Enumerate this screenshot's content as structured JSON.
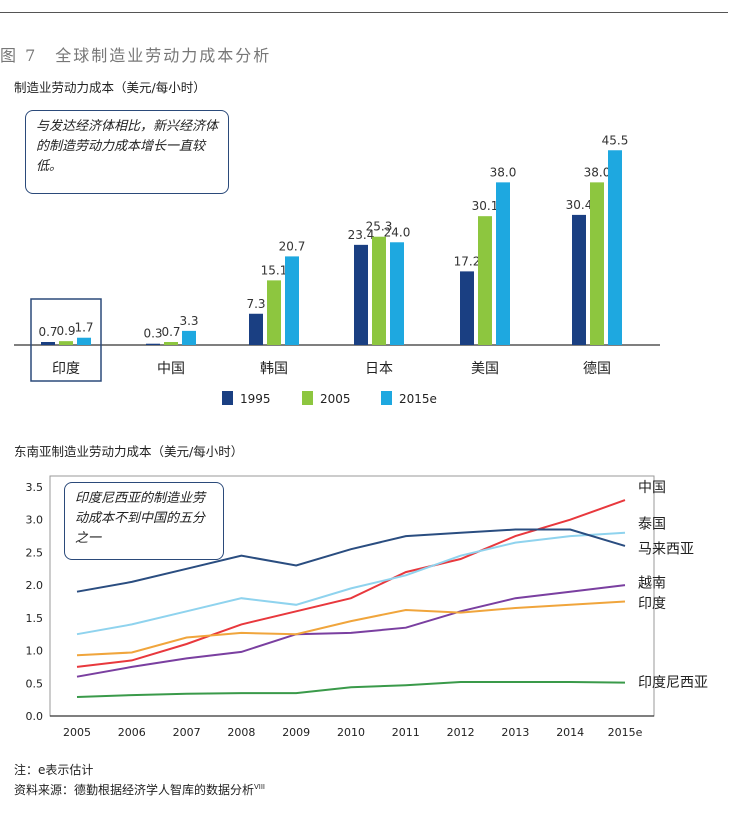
{
  "figure_title": "图 7　全球制造业劳动力成本分析",
  "chart_data": [
    {
      "type": "bar",
      "title": "制造业劳动力成本（美元/每小时）",
      "categories": [
        "印度",
        "中国",
        "韩国",
        "日本",
        "美国",
        "德国"
      ],
      "series": [
        {
          "name": "1995",
          "values": [
            0.7,
            0.3,
            7.3,
            23.4,
            17.2,
            30.4
          ],
          "labels": [
            "0.7",
            "0.3",
            "7.3",
            "23.4",
            "17.2",
            "30.4"
          ]
        },
        {
          "name": "2005",
          "values": [
            0.9,
            0.7,
            15.1,
            25.3,
            30.1,
            38.0
          ],
          "labels": [
            "0.9",
            "0.7",
            "15.1",
            "25.3",
            "30.1",
            "38.0"
          ]
        },
        {
          "name": "2015e",
          "values": [
            1.7,
            3.3,
            20.7,
            24.0,
            38.0,
            45.5
          ],
          "labels": [
            "1.7",
            "3.3",
            "20.7",
            "24.0",
            "38.0",
            "45.5"
          ]
        }
      ],
      "colors": [
        "#1a3f82",
        "#8dc63f",
        "#1ea8e0"
      ],
      "ylim": [
        0,
        48
      ],
      "highlighted_category": "印度",
      "legend_position": "bottom",
      "annotation": "与发达经济体相比，新兴经济体的制造劳动力成本增长一直较低。"
    },
    {
      "type": "line",
      "title": "东南亚制造业劳动力成本（美元/每小时）",
      "x": [
        "2005",
        "2006",
        "2007",
        "2008",
        "2009",
        "2010",
        "2011",
        "2012",
        "2013",
        "2014",
        "2015e"
      ],
      "y_ticks": [
        "0.0",
        "0.5",
        "1.0",
        "1.5",
        "2.0",
        "2.5",
        "3.0",
        "3.5"
      ],
      "ylim": [
        0,
        3.5
      ],
      "series": [
        {
          "name": "中国",
          "color": "#e8383d",
          "values": [
            0.75,
            0.85,
            1.1,
            1.4,
            1.6,
            1.8,
            2.2,
            2.4,
            2.75,
            3.0,
            3.3
          ]
        },
        {
          "name": "泰国",
          "color": "#8fd3ee",
          "values": [
            1.25,
            1.4,
            1.6,
            1.8,
            1.7,
            1.95,
            2.15,
            2.45,
            2.65,
            2.75,
            2.8
          ]
        },
        {
          "name": "马来西亚",
          "color": "#2a4d80",
          "values": [
            1.9,
            2.05,
            2.25,
            2.45,
            2.3,
            2.55,
            2.75,
            2.8,
            2.85,
            2.85,
            2.6
          ]
        },
        {
          "name": "越南",
          "color": "#7a3fa0",
          "values": [
            0.6,
            0.75,
            0.88,
            0.98,
            1.25,
            1.27,
            1.35,
            1.6,
            1.8,
            1.9,
            2.0
          ]
        },
        {
          "name": "印度",
          "color": "#f0a53c",
          "values": [
            0.93,
            0.97,
            1.2,
            1.27,
            1.25,
            1.45,
            1.62,
            1.58,
            1.65,
            1.7,
            1.75
          ]
        },
        {
          "name": "印度尼西亚",
          "color": "#3a9a4a",
          "values": [
            0.29,
            0.32,
            0.34,
            0.35,
            0.35,
            0.44,
            0.47,
            0.52,
            0.52,
            0.52,
            0.51
          ]
        }
      ],
      "grid": false,
      "legend_position": "right",
      "annotation": "印度尼西亚的制造业劳动成本不到中国的五分之一"
    }
  ],
  "notes": {
    "note1": "注：e表示估计",
    "note2": "资料来源：德勤根据经济学人智库的数据分析",
    "note2_sup": "VIII"
  }
}
